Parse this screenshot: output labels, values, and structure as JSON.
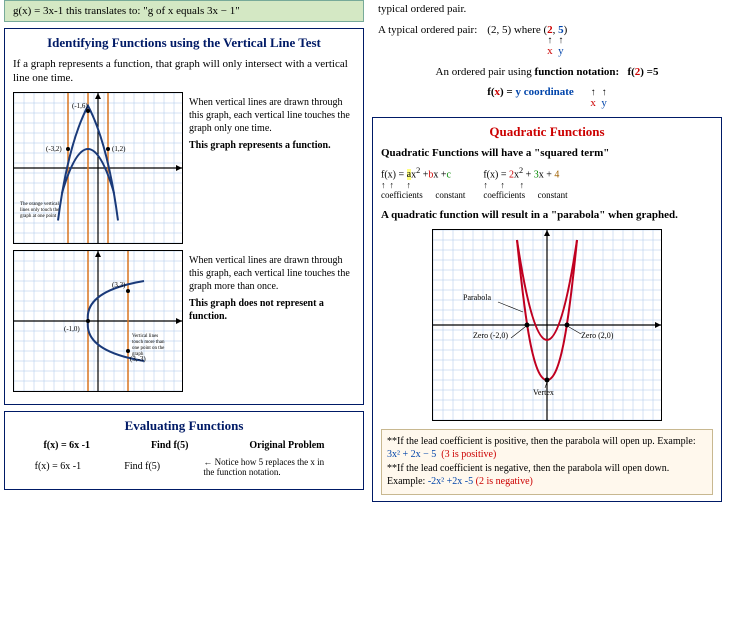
{
  "top": {
    "gx_line": "g(x) = 3x-1      this translates to:  \"g of x equals  3x − 1\"",
    "right_partial": "typical ordered pair."
  },
  "vlt": {
    "title": "Identifying Functions using the Vertical Line Test",
    "intro": "If a graph represents a function, that graph will only intersect with a  vertical line one time.",
    "graph1": {
      "caption": "When vertical lines are drawn through this graph, each vertical line touches the graph only one time.",
      "bold": "This graph represents a function.",
      "note": "The orange vertical lines only touch the graph at one point",
      "points": [
        "(-1,6)",
        "(-3,2)",
        "(1,2)"
      ],
      "vlines_x": [
        -3,
        -1,
        1
      ],
      "curve_color": "#1a3a7a",
      "vline_color": "#d97520",
      "grid_color": "#a8c5e8",
      "axis_color": "#000"
    },
    "graph2": {
      "caption": "When vertical lines are drawn through this graph, each vertical line touches the graph more than once.",
      "bold": "This graph does not represent a function.",
      "note": "Vertical lines touch more than one point on the graph",
      "points": [
        "(3,3)",
        "(-1,0)",
        "(3,-3)"
      ],
      "vlines_x": [
        -1,
        3
      ],
      "curve_color": "#1a3a7a",
      "vline_color": "#d97520",
      "grid_color": "#a8c5e8"
    }
  },
  "eval": {
    "title": "Evaluating Functions",
    "r1a": "f(x) = 6x -1",
    "r1b": "Find f(5)",
    "r1c": "Original Problem",
    "r2a": "f(x) = 6x -1",
    "r2b": "Find f(5)",
    "r2note": "Notice how 5 replaces the x in the function notation."
  },
  "ordpair": {
    "l1a": "A typical ordered pair:",
    "l1b": "(2, 5)   where",
    "x": "x",
    "y": "y",
    "l2": "An ordered pair using",
    "l2b": "function notation:",
    "f2eq5_a": "f(",
    "f2eq5_b": "2",
    "f2eq5_c": ")  =5",
    "l3a": "f(",
    "l3b": "x",
    "l3c": ") = ",
    "l3d": "y coordinate"
  },
  "quad": {
    "title": "Quadratic Functions",
    "h1": "Quadratic Functions will have a \"squared term\"",
    "ex1": "f(x) = ax² +bx +c",
    "ex2": "f(x) = 2x² + 3x + 4",
    "coef": "coefficients",
    "const": "constant",
    "h2": "A quadratic function will result in a \"parabola\" when graphed.",
    "graph": {
      "parabola_label": "Parabola",
      "zero1": "Zero (-2,0)",
      "zero2": "Zero (2,0)",
      "vertex": "Vertex",
      "curve_color": "#c00020",
      "grid_color": "#a8c5e8"
    },
    "note1a": "**If the lead coefficient is positive, then the parabola will open up.  Example:  ",
    "note1b": "3x² + 2x − 5",
    "note1c": "(3 is positive)",
    "note2a": "**If the lead coefficient is negative, then the parabola will open down.  Example:  ",
    "note2b": "-2x² +2x -5",
    "note2c": "(2 is negative)"
  }
}
